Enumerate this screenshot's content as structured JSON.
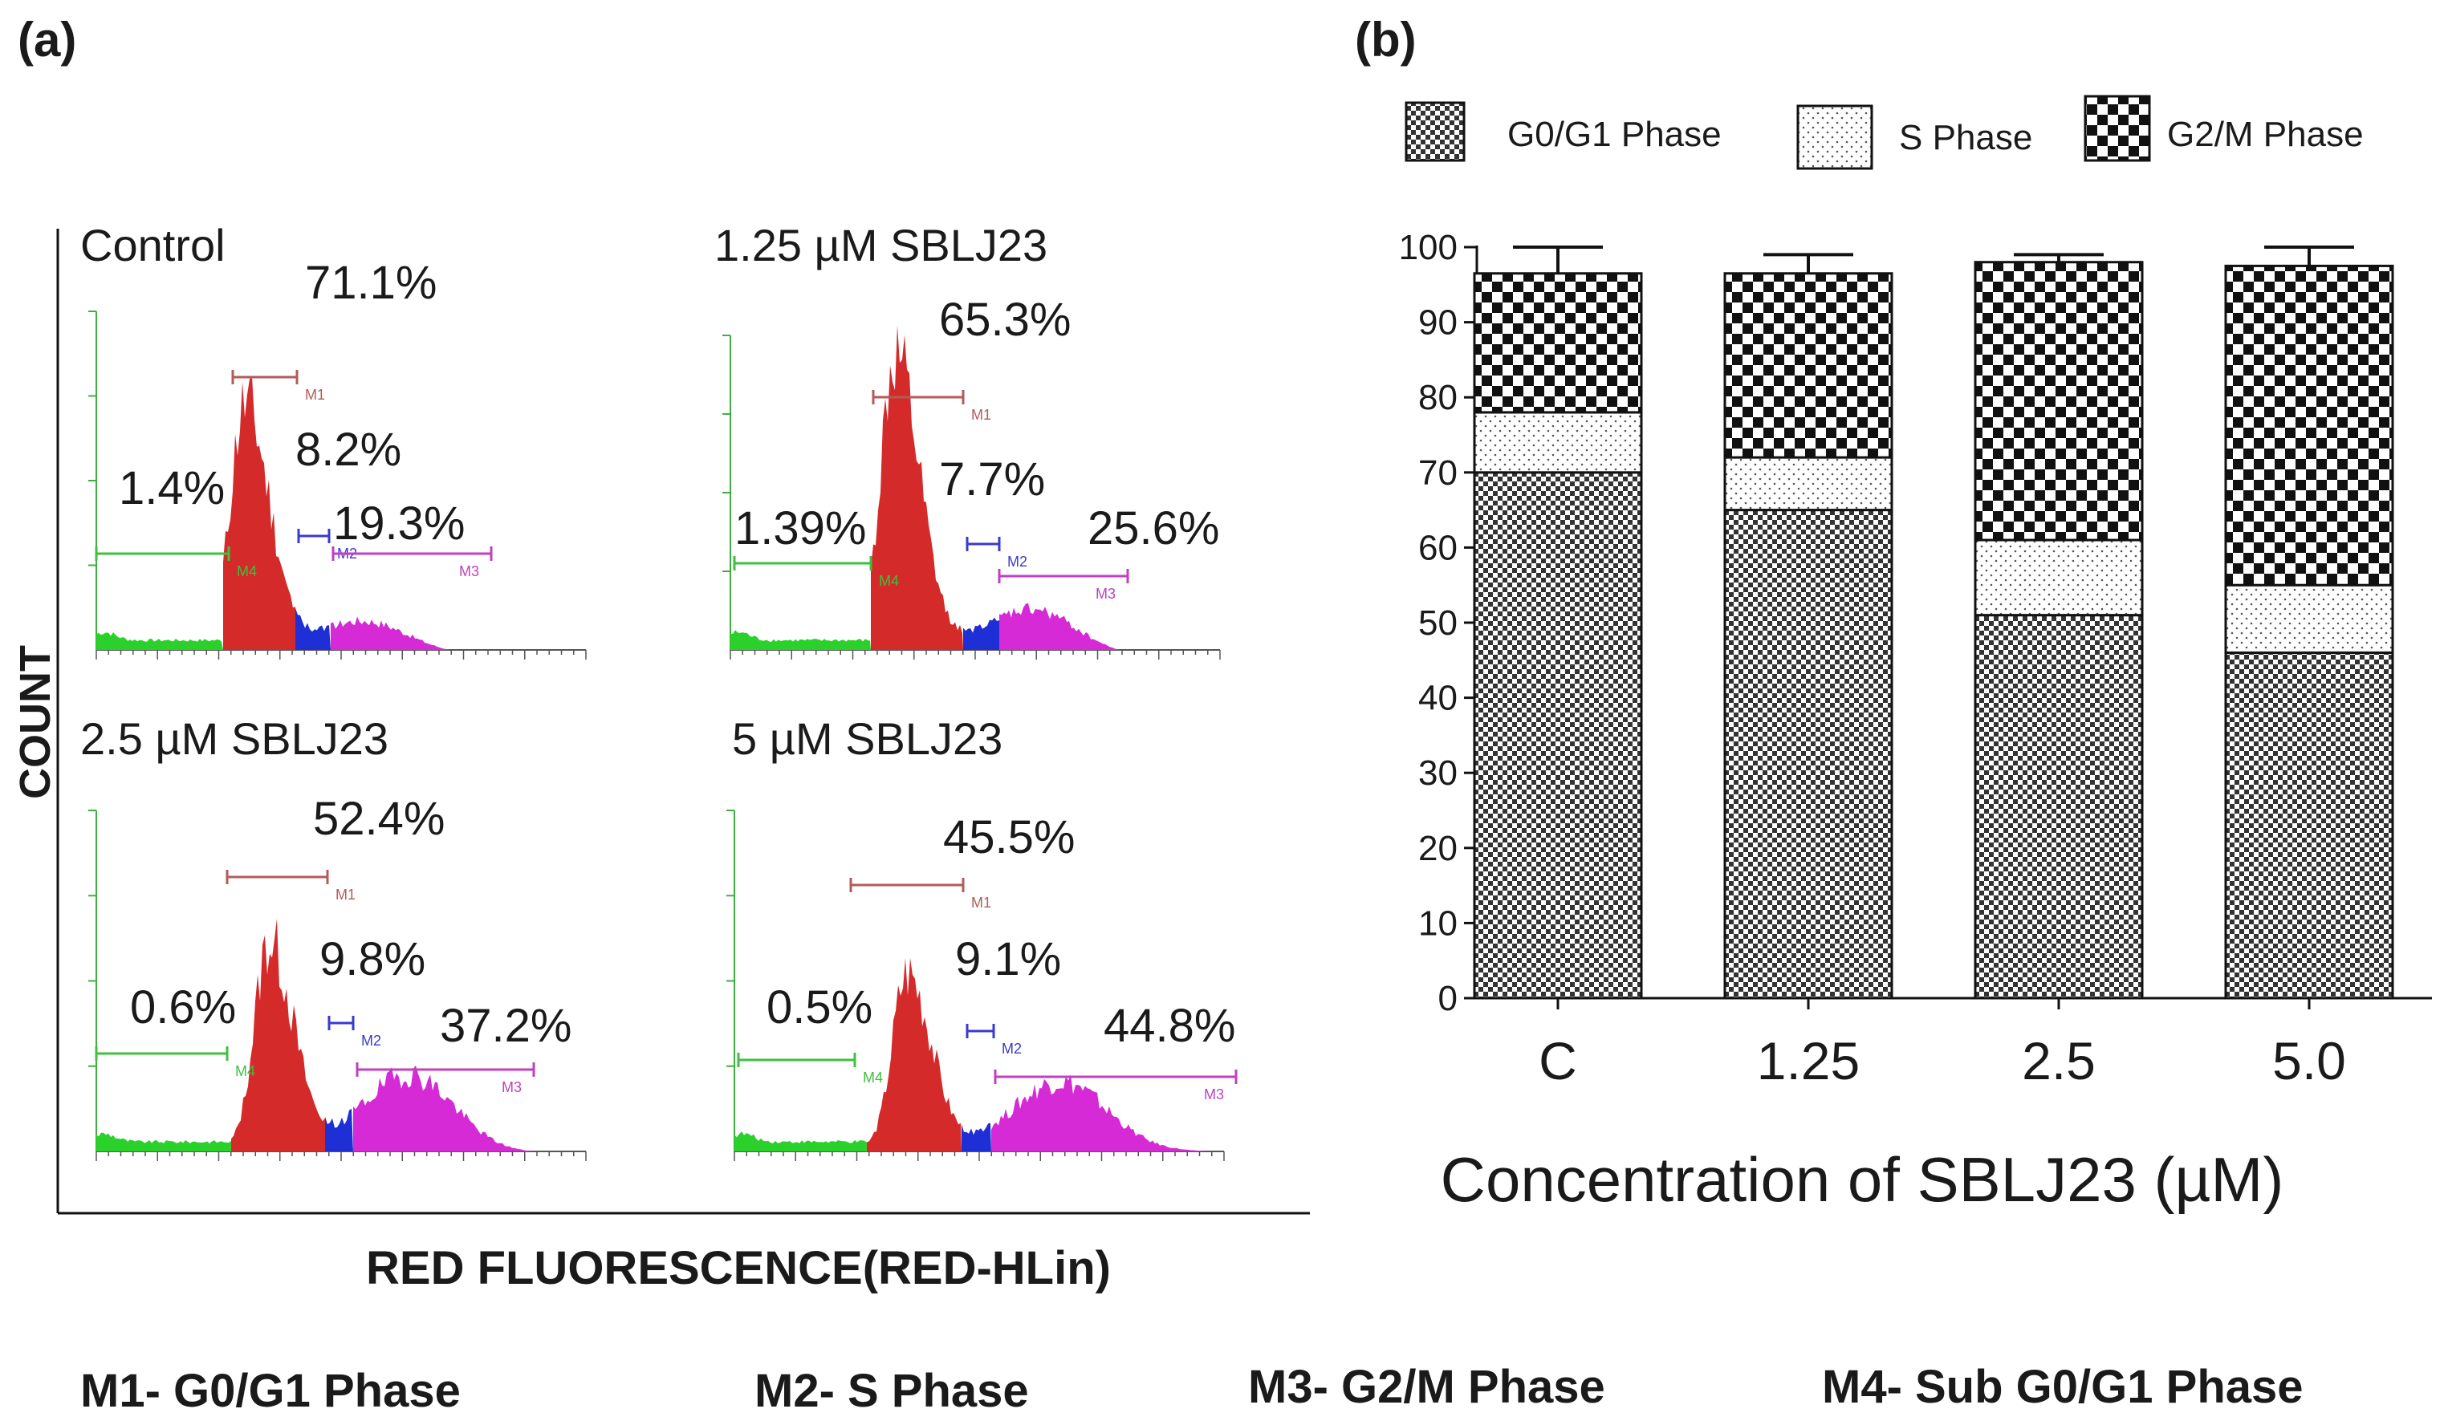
{
  "figure": {
    "panel_a_label": "(a)",
    "panel_b_label": "(b)",
    "y_axis_label": "COUNT",
    "x_axis_label": "RED FLUORESCENCE(RED-HLin)",
    "marker_legend": [
      "M1- G0/G1 Phase",
      "M2- S Phase",
      "M3- G2/M Phase",
      "M4- Sub G0/G1 Phase"
    ],
    "colors": {
      "m1": "#d42a2a",
      "m2": "#1f2fd6",
      "m3": "#d62ad6",
      "m4": "#2bd12b",
      "m1_gate": "#b55a5a",
      "m2_gate": "#3a3ad0",
      "m3_gate": "#c040c0",
      "m4_gate": "#3fc03f"
    }
  },
  "chart_data": [
    {
      "type": "histogram",
      "panel": "a",
      "description_title": "Flow cytometry cell-cycle histograms",
      "gate_names": [
        "M1",
        "M2",
        "M3",
        "M4"
      ],
      "histograms": [
        {
          "title": "Control",
          "m1": "71.1%",
          "m2": "8.2%",
          "m3": "19.3%",
          "m4": "1.4%",
          "m1_value": 71.1,
          "m2_value": 8.2,
          "m3_value": 19.3,
          "m4_value": 1.4
        },
        {
          "title": "1.25 µM SBLJ23",
          "m1": "65.3%",
          "m2": "7.7%",
          "m3": "25.6%",
          "m4": "1.39%",
          "m1_value": 65.3,
          "m2_value": 7.7,
          "m3_value": 25.6,
          "m4_value": 1.39
        },
        {
          "title": "2.5 µM SBLJ23",
          "m1": "52.4%",
          "m2": "9.8%",
          "m3": "37.2%",
          "m4": "0.6%",
          "m1_value": 52.4,
          "m2_value": 9.8,
          "m3_value": 37.2,
          "m4_value": 0.6
        },
        {
          "title": "5 µM SBLJ23",
          "m1": "45.5%",
          "m2": "9.1%",
          "m3": "44.8%",
          "m4": "0.5%",
          "m1_value": 45.5,
          "m2_value": 9.1,
          "m3_value": 44.8,
          "m4_value": 0.5
        }
      ]
    },
    {
      "type": "bar",
      "stacked": true,
      "panel": "b",
      "categories": [
        "C",
        "1.25",
        "2.5",
        "5.0"
      ],
      "xlabel": "Concentration of SBLJ23 (µM)",
      "ylabel": "",
      "ylim": [
        0,
        100
      ],
      "yticks": [
        "0",
        "10",
        "20",
        "30",
        "40",
        "50",
        "60",
        "70",
        "80",
        "90",
        "100"
      ],
      "series": [
        {
          "name": "G0/G1 Phase",
          "pattern": "checker-fine",
          "values": [
            70,
            65,
            51,
            46
          ]
        },
        {
          "name": "S Phase",
          "pattern": "dots",
          "values": [
            8,
            7,
            10,
            9
          ]
        },
        {
          "name": "G2/M Phase",
          "pattern": "checker-coarse",
          "values": [
            18.5,
            24.5,
            37,
            42.5
          ]
        }
      ],
      "error_bars_upper": [
        3.5,
        2.5,
        1,
        2.5
      ],
      "legend_position": "top"
    }
  ]
}
